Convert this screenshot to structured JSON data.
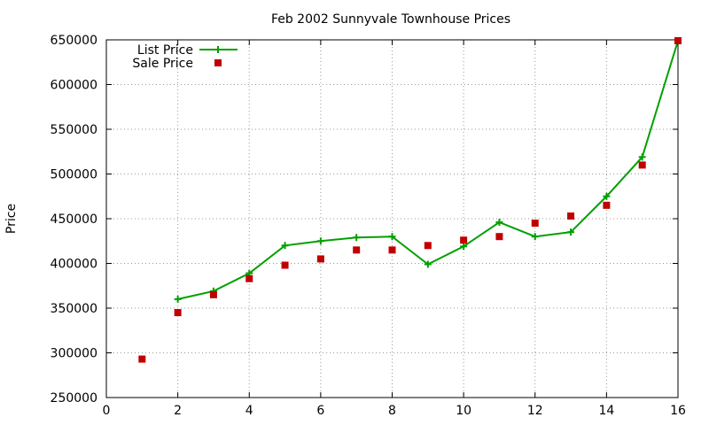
{
  "chart_data": {
    "type": "line",
    "title": "Feb 2002 Sunnyvale Townhouse Prices",
    "xlabel": "",
    "ylabel": "Price",
    "xlim": [
      0,
      16
    ],
    "ylim": [
      250000,
      650000
    ],
    "x_ticks": [
      0,
      2,
      4,
      6,
      8,
      10,
      12,
      14,
      16
    ],
    "y_ticks": [
      250000,
      300000,
      350000,
      400000,
      450000,
      500000,
      550000,
      600000,
      650000
    ],
    "grid": true,
    "legend_position": "top-left",
    "series": [
      {
        "name": "List Price",
        "style": "line-with-plus-markers",
        "color": "#00a000",
        "x": [
          2,
          3,
          4,
          5,
          6,
          7,
          8,
          9,
          10,
          11,
          12,
          13,
          14,
          15,
          16
        ],
        "y": [
          360000,
          369000,
          389000,
          420000,
          425000,
          429000,
          430000,
          399000,
          419000,
          446000,
          430000,
          435000,
          475000,
          519000,
          649000
        ]
      },
      {
        "name": "Sale Price",
        "style": "square-markers",
        "color": "#c00000",
        "x": [
          1,
          2,
          3,
          4,
          5,
          6,
          7,
          8,
          9,
          10,
          11,
          12,
          13,
          14,
          15,
          16
        ],
        "y": [
          293000,
          345000,
          365000,
          383000,
          398000,
          405000,
          415000,
          415000,
          420000,
          426000,
          430000,
          445000,
          453000,
          465000,
          510000,
          649000
        ]
      }
    ]
  }
}
